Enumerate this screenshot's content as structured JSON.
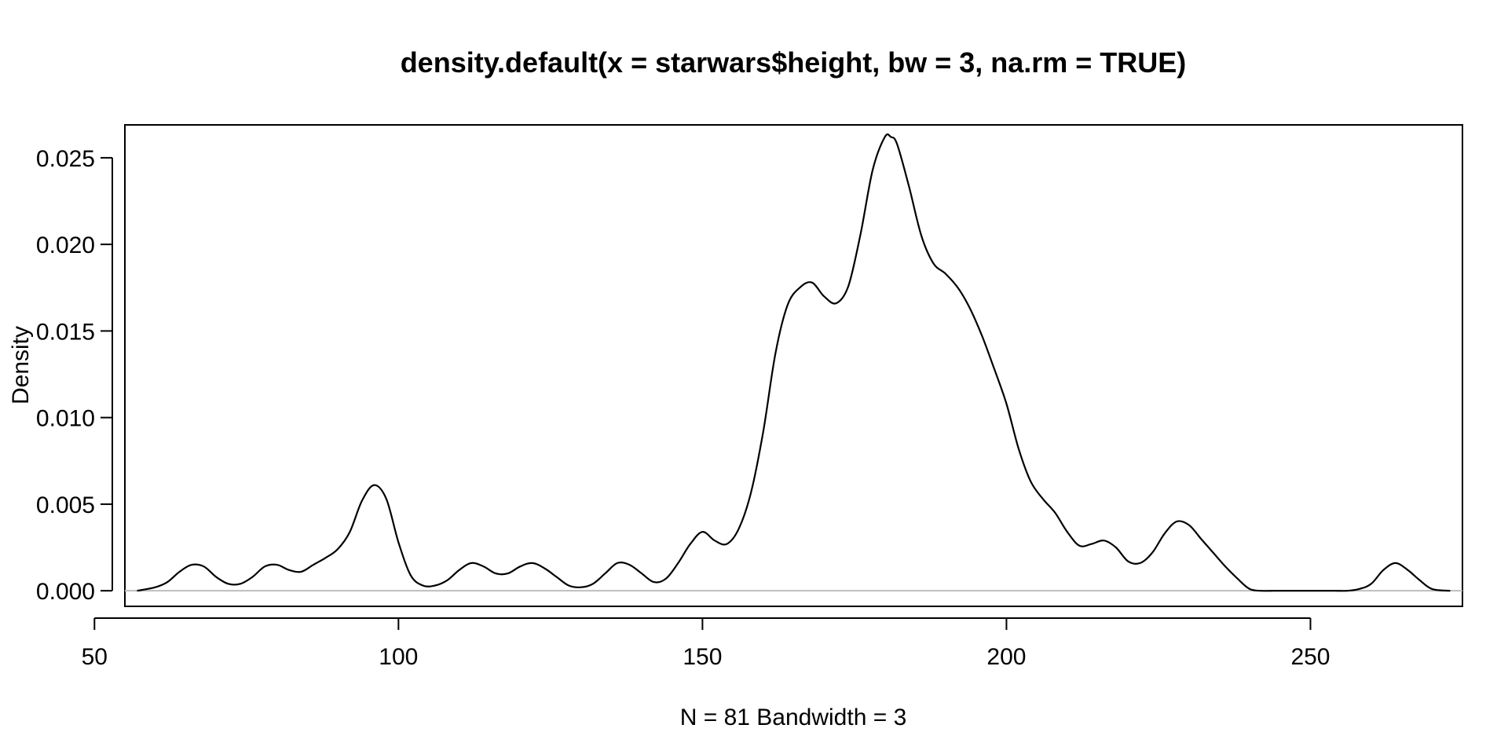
{
  "chart_data": {
    "type": "line",
    "title": "density.default(x = starwars$height, bw = 3, na.rm = TRUE)",
    "xlabel": "N = 81   Bandwidth = 3",
    "ylabel": "Density",
    "xlim": [
      55,
      275
    ],
    "ylim": [
      -0.0009,
      0.0269
    ],
    "x_ticks": [
      50,
      100,
      150,
      200,
      250
    ],
    "x_tick_labels": [
      "50",
      "100",
      "150",
      "200",
      "250"
    ],
    "y_ticks": [
      0.0,
      0.005,
      0.01,
      0.015,
      0.02,
      0.025
    ],
    "y_tick_labels": [
      "0.000",
      "0.005",
      "0.010",
      "0.015",
      "0.020",
      "0.025"
    ],
    "baseline": 0,
    "grid": false,
    "line_color": "#000000",
    "baseline_color": "#bebebe",
    "series": [
      {
        "x": [
          57,
          60,
          62,
          64,
          66,
          68,
          70,
          72,
          74,
          76,
          78,
          80,
          82,
          84,
          86,
          88,
          90,
          92,
          94,
          96,
          98,
          100,
          102,
          104,
          106,
          108,
          110,
          112,
          114,
          116,
          118,
          120,
          122,
          124,
          126,
          128,
          130,
          132,
          134,
          136,
          138,
          140,
          142,
          144,
          146,
          148,
          150,
          152,
          154,
          156,
          158,
          160,
          162,
          164,
          166,
          168,
          170,
          172,
          174,
          176,
          178,
          180,
          181,
          182,
          184,
          186,
          188,
          190,
          192,
          194,
          196,
          198,
          200,
          202,
          204,
          206,
          208,
          210,
          212,
          214,
          216,
          218,
          220,
          222,
          224,
          226,
          228,
          230,
          232,
          234,
          236,
          238,
          240,
          242,
          244,
          246,
          248,
          250,
          252,
          254,
          256,
          258,
          260,
          262,
          264,
          266,
          268,
          270,
          273
        ],
        "y": [
          0.0,
          0.0002,
          0.0005,
          0.0011,
          0.0015,
          0.0014,
          0.0008,
          0.0004,
          0.0004,
          0.0008,
          0.0014,
          0.0015,
          0.0012,
          0.0011,
          0.0015,
          0.0019,
          0.0024,
          0.0034,
          0.0052,
          0.0061,
          0.0053,
          0.0028,
          0.0009,
          0.0003,
          0.0003,
          0.0006,
          0.0012,
          0.0016,
          0.0014,
          0.001,
          0.001,
          0.0014,
          0.0016,
          0.0013,
          0.0008,
          0.0003,
          0.0002,
          0.0004,
          0.001,
          0.0016,
          0.0015,
          0.001,
          0.0005,
          0.0007,
          0.0016,
          0.0027,
          0.0034,
          0.0029,
          0.0027,
          0.0036,
          0.0057,
          0.0092,
          0.0137,
          0.0165,
          0.0175,
          0.0178,
          0.017,
          0.0166,
          0.0176,
          0.0206,
          0.0243,
          0.0262,
          0.0262,
          0.0258,
          0.0233,
          0.0205,
          0.0189,
          0.0183,
          0.0175,
          0.0163,
          0.0147,
          0.0128,
          0.0108,
          0.0082,
          0.0063,
          0.0053,
          0.0045,
          0.0034,
          0.0026,
          0.0027,
          0.0029,
          0.0025,
          0.0017,
          0.0016,
          0.0022,
          0.0033,
          0.004,
          0.0038,
          0.003,
          0.0022,
          0.0014,
          0.0007,
          0.0001,
          0.0,
          0.0,
          0.0,
          0.0,
          0.0,
          0.0,
          0.0,
          0.0,
          0.0001,
          0.0004,
          0.0012,
          0.0016,
          0.0012,
          0.0006,
          0.0001,
          0.0
        ]
      }
    ]
  }
}
